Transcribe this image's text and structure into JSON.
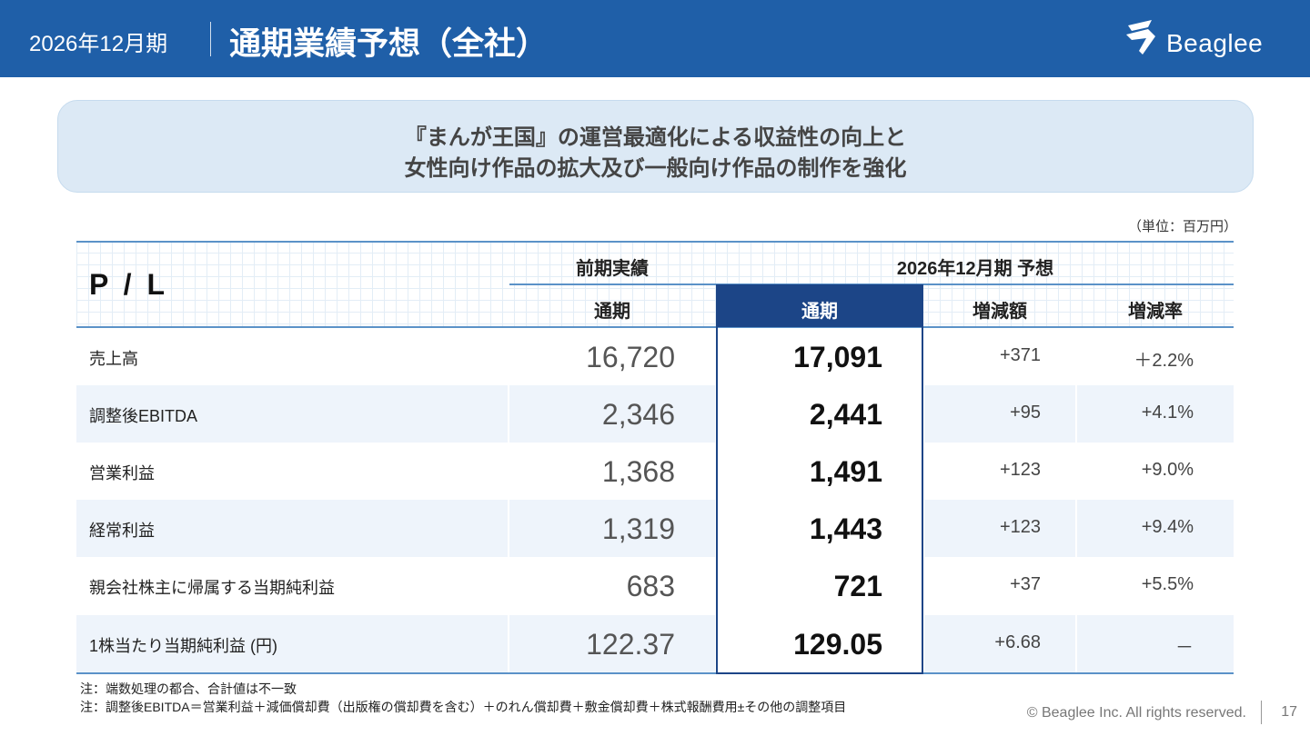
{
  "header": {
    "period": "2026年12月期",
    "title": "通期業績予想（全社）",
    "logo_text": "Beaglee"
  },
  "headline": {
    "line1": "『まんが王国』の運営最適化による収益性の向上と",
    "line2": "女性向け作品の拡大及び一般向け作品の制作を強化"
  },
  "unit": "（単位：百万円）",
  "table": {
    "corner_label": "P / L",
    "group_prev": "前期実績",
    "group_forecast": "2026年12月期 予想",
    "col_prev": "通期",
    "col_forecast": "通期",
    "col_diff": "増減額",
    "col_rate": "増減率",
    "rows": [
      {
        "label": "売上高",
        "prev": "16,720",
        "forecast": "17,091",
        "diff": "+371",
        "rate": "＋2.2%"
      },
      {
        "label": "調整後EBITDA",
        "prev": "2,346",
        "forecast": "2,441",
        "diff": "+95",
        "rate": "+4.1%"
      },
      {
        "label": "営業利益",
        "prev": "1,368",
        "forecast": "1,491",
        "diff": "+123",
        "rate": "+9.0%"
      },
      {
        "label": "経常利益",
        "prev": "1,319",
        "forecast": "1,443",
        "diff": "+123",
        "rate": "+9.4%"
      },
      {
        "label": "親会社株主に帰属する当期純利益",
        "prev": "683",
        "forecast": "721",
        "diff": "+37",
        "rate": "+5.5%"
      },
      {
        "label": "1株当たり当期純利益 (円)",
        "prev": "122.37",
        "forecast": "129.05",
        "diff": "+6.68",
        "rate": "－"
      }
    ]
  },
  "notes": {
    "note1": "注：端数処理の都合、合計値は不一致",
    "note2": "注：調整後EBITDA＝営業利益＋減価償却費（出版権の償却費を含む）＋のれん償却費＋敷金償却費＋株式報酬費用±その他の調整項目"
  },
  "footer": {
    "copyright": "© Beaglee Inc. All rights reserved.",
    "page_number": "17"
  },
  "colors": {
    "header_bg": "#1f5fa8",
    "highlight_col": "#1c4587",
    "callout_bg": "#dce9f5",
    "row_shade": "#eef4fb"
  }
}
